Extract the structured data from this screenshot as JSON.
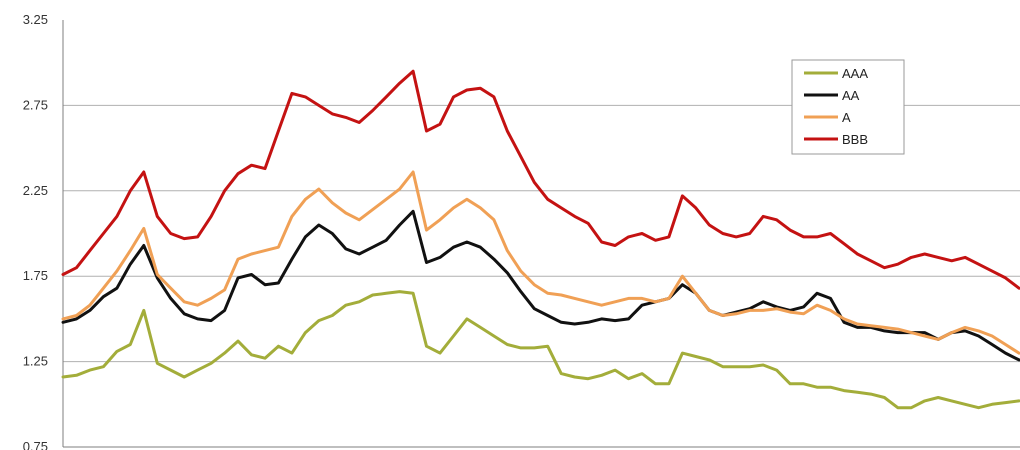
{
  "chart_data": {
    "type": "line",
    "title": "",
    "xlabel": "",
    "ylabel": "",
    "ylim": [
      0.75,
      3.25
    ],
    "y_ticks": [
      "3.25",
      "2.75",
      "2.25",
      "1.75",
      "1.25",
      "0.75"
    ],
    "grid": "horizontal",
    "legend_position": "top-right",
    "series": [
      {
        "name": "AAA",
        "color": "#a3ad3a",
        "values": [
          1.16,
          1.17,
          1.2,
          1.22,
          1.31,
          1.35,
          1.55,
          1.24,
          1.2,
          1.16,
          1.2,
          1.24,
          1.3,
          1.37,
          1.29,
          1.27,
          1.34,
          1.3,
          1.42,
          1.49,
          1.52,
          1.58,
          1.6,
          1.64,
          1.65,
          1.66,
          1.65,
          1.34,
          1.3,
          1.4,
          1.5,
          1.45,
          1.4,
          1.35,
          1.33,
          1.33,
          1.34,
          1.18,
          1.16,
          1.15,
          1.17,
          1.2,
          1.15,
          1.18,
          1.12,
          1.12,
          1.3,
          1.28,
          1.26,
          1.22,
          1.22,
          1.22,
          1.23,
          1.2,
          1.12,
          1.12,
          1.1,
          1.1,
          1.08,
          1.07,
          1.06,
          1.04,
          0.98,
          0.98,
          1.02,
          1.04,
          1.02,
          1.0,
          0.98,
          1.0,
          1.01,
          1.02
        ]
      },
      {
        "name": "AA",
        "color": "#111111",
        "values": [
          1.48,
          1.5,
          1.55,
          1.63,
          1.68,
          1.82,
          1.93,
          1.74,
          1.62,
          1.53,
          1.5,
          1.49,
          1.55,
          1.74,
          1.76,
          1.7,
          1.71,
          1.85,
          1.98,
          2.05,
          2.0,
          1.91,
          1.88,
          1.92,
          1.96,
          2.05,
          2.13,
          1.83,
          1.86,
          1.92,
          1.95,
          1.92,
          1.85,
          1.77,
          1.66,
          1.56,
          1.52,
          1.48,
          1.47,
          1.48,
          1.5,
          1.49,
          1.5,
          1.58,
          1.6,
          1.62,
          1.7,
          1.65,
          1.55,
          1.52,
          1.54,
          1.56,
          1.6,
          1.57,
          1.55,
          1.57,
          1.65,
          1.62,
          1.48,
          1.45,
          1.45,
          1.43,
          1.42,
          1.42,
          1.42,
          1.38,
          1.42,
          1.43,
          1.4,
          1.35,
          1.3,
          1.26
        ]
      },
      {
        "name": "A",
        "color": "#f0a055",
        "values": [
          1.5,
          1.52,
          1.58,
          1.68,
          1.78,
          1.9,
          2.03,
          1.76,
          1.68,
          1.6,
          1.58,
          1.62,
          1.67,
          1.85,
          1.88,
          1.9,
          1.92,
          2.1,
          2.2,
          2.26,
          2.18,
          2.12,
          2.08,
          2.14,
          2.2,
          2.26,
          2.36,
          2.02,
          2.08,
          2.15,
          2.2,
          2.15,
          2.08,
          1.9,
          1.78,
          1.7,
          1.65,
          1.64,
          1.62,
          1.6,
          1.58,
          1.6,
          1.62,
          1.62,
          1.6,
          1.62,
          1.75,
          1.65,
          1.55,
          1.52,
          1.53,
          1.55,
          1.55,
          1.56,
          1.54,
          1.53,
          1.58,
          1.55,
          1.5,
          1.47,
          1.46,
          1.45,
          1.44,
          1.42,
          1.4,
          1.38,
          1.42,
          1.45,
          1.43,
          1.4,
          1.35,
          1.3
        ]
      },
      {
        "name": "BBB",
        "color": "#c41212",
        "values": [
          1.76,
          1.8,
          1.9,
          2.0,
          2.1,
          2.25,
          2.36,
          2.1,
          2.0,
          1.97,
          1.98,
          2.1,
          2.25,
          2.35,
          2.4,
          2.38,
          2.6,
          2.82,
          2.8,
          2.75,
          2.7,
          2.68,
          2.65,
          2.72,
          2.8,
          2.88,
          2.95,
          2.6,
          2.64,
          2.8,
          2.84,
          2.85,
          2.8,
          2.6,
          2.45,
          2.3,
          2.2,
          2.15,
          2.1,
          2.06,
          1.95,
          1.93,
          1.98,
          2.0,
          1.96,
          1.98,
          2.22,
          2.15,
          2.05,
          2.0,
          1.98,
          2.0,
          2.1,
          2.08,
          2.02,
          1.98,
          1.98,
          2.0,
          1.94,
          1.88,
          1.84,
          1.8,
          1.82,
          1.86,
          1.88,
          1.86,
          1.84,
          1.86,
          1.82,
          1.78,
          1.74,
          1.68
        ]
      }
    ]
  }
}
